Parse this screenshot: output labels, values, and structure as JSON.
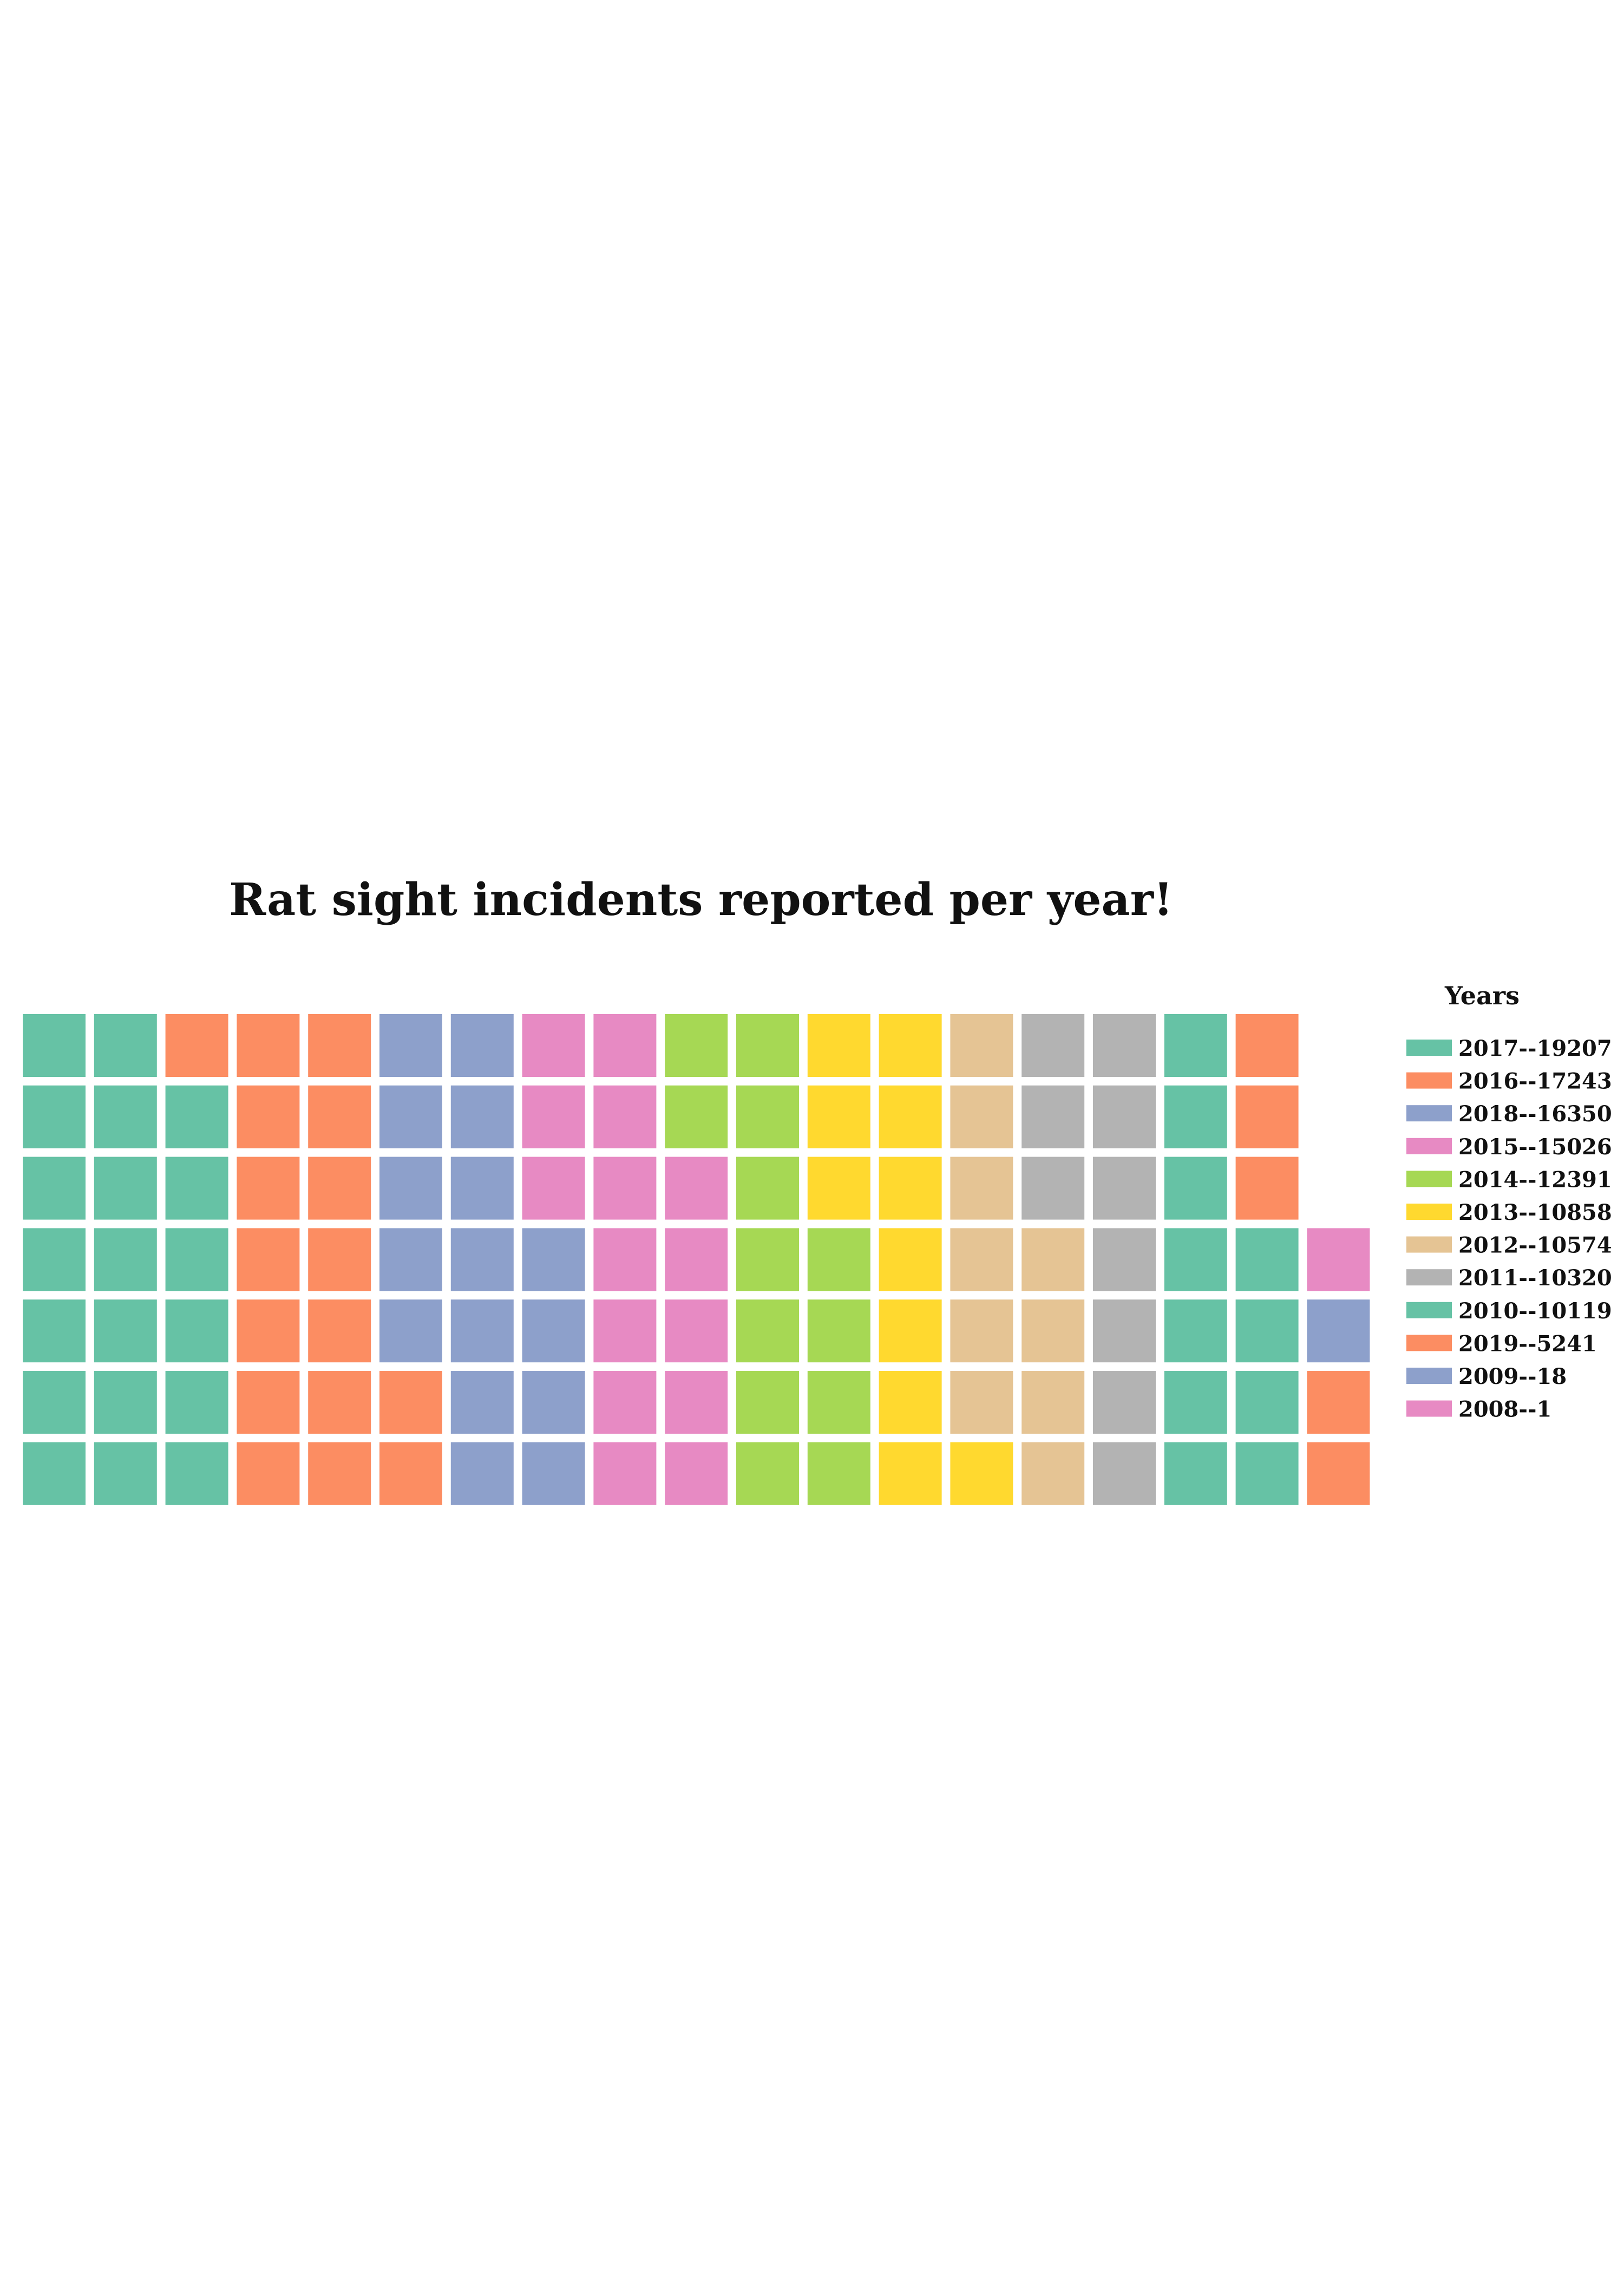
{
  "chart_data": {
    "type": "waffle",
    "title": "Rat sight incidents reported per year!",
    "legend": {
      "title": "Years",
      "placement": "right",
      "items": [
        {
          "label": "2017--19207",
          "year": "2017",
          "value": 19207,
          "color": "#66c2a5"
        },
        {
          "label": "2016--17243",
          "year": "2016",
          "value": 17243,
          "color": "#fc8d62"
        },
        {
          "label": "2018--16350",
          "year": "2018",
          "value": 16350,
          "color": "#8da0cb"
        },
        {
          "label": "2015--15026",
          "year": "2015",
          "value": 15026,
          "color": "#e78ac3"
        },
        {
          "label": "2014--12391",
          "year": "2014",
          "value": 12391,
          "color": "#a6d854"
        },
        {
          "label": "2013--10858",
          "year": "2013",
          "value": 10858,
          "color": "#ffd92f"
        },
        {
          "label": "2012--10574",
          "year": "2012",
          "value": 10574,
          "color": "#e5c494"
        },
        {
          "label": "2011--10320",
          "year": "2011",
          "value": 10320,
          "color": "#b3b3b3"
        },
        {
          "label": "2010--10119",
          "year": "2010",
          "value": 10119,
          "color": "#66c2a5"
        },
        {
          "label": "2019--5241",
          "year": "2019",
          "value": 5241,
          "color": "#fc8d62"
        },
        {
          "label": "2009--18",
          "year": "2009",
          "value": 18,
          "color": "#8da0cb"
        },
        {
          "label": "2008--1",
          "year": "2008",
          "value": 1,
          "color": "#e78ac3"
        }
      ]
    },
    "rows": 7,
    "columns": 19,
    "grid": [
      [
        "2017",
        "2017",
        "2016",
        "2016",
        "2016",
        "2018",
        "2018",
        "2015",
        "2015",
        "2014",
        "2014",
        "2013",
        "2013",
        "2012",
        "2011",
        "2011",
        "2010",
        "2019",
        null
      ],
      [
        "2017",
        "2017",
        "2017",
        "2016",
        "2016",
        "2018",
        "2018",
        "2015",
        "2015",
        "2014",
        "2014",
        "2013",
        "2013",
        "2012",
        "2011",
        "2011",
        "2010",
        "2019",
        null
      ],
      [
        "2017",
        "2017",
        "2017",
        "2016",
        "2016",
        "2018",
        "2018",
        "2015",
        "2015",
        "2015",
        "2014",
        "2013",
        "2013",
        "2012",
        "2011",
        "2011",
        "2010",
        "2019",
        null
      ],
      [
        "2017",
        "2017",
        "2017",
        "2016",
        "2016",
        "2018",
        "2018",
        "2018",
        "2015",
        "2015",
        "2014",
        "2014",
        "2013",
        "2012",
        "2012",
        "2011",
        "2010",
        "2010",
        "2008"
      ],
      [
        "2017",
        "2017",
        "2017",
        "2016",
        "2016",
        "2018",
        "2018",
        "2018",
        "2015",
        "2015",
        "2014",
        "2014",
        "2013",
        "2012",
        "2012",
        "2011",
        "2010",
        "2010",
        "2009"
      ],
      [
        "2017",
        "2017",
        "2017",
        "2016",
        "2016",
        "2016",
        "2018",
        "2018",
        "2015",
        "2015",
        "2014",
        "2014",
        "2013",
        "2012",
        "2012",
        "2011",
        "2010",
        "2010",
        "2019"
      ],
      [
        "2017",
        "2017",
        "2017",
        "2016",
        "2016",
        "2016",
        "2018",
        "2018",
        "2015",
        "2015",
        "2014",
        "2014",
        "2013",
        "2013",
        "2012",
        "2011",
        "2010",
        "2010",
        "2019"
      ]
    ]
  }
}
